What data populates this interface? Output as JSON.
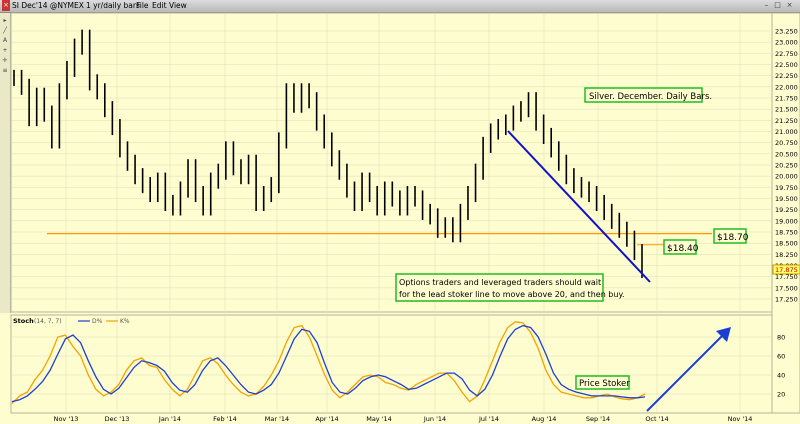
{
  "window": {
    "title": "SI Dec'14 @NYMEX",
    "period": "1 yr/daily bars",
    "menu": [
      "File",
      "Edit",
      "View"
    ]
  },
  "colors": {
    "background": "#fdfdd0",
    "price_bars": "#000000",
    "support_line": "#ff9900",
    "trend_line": "#1111cc",
    "d_line": "#1f3fcf",
    "k_line": "#f5a100",
    "annotation_border": "#22bb22",
    "current_price_tag": "#ffff66"
  },
  "price_axis": {
    "ticks": [
      "23.250",
      "23.000",
      "22.750",
      "22.500",
      "22.250",
      "22.000",
      "21.750",
      "21.500",
      "21.250",
      "21.000",
      "20.750",
      "20.500",
      "20.250",
      "20.000",
      "19.750",
      "19.500",
      "19.250",
      "19.000",
      "18.750",
      "18.500",
      "18.250",
      "18.000",
      "17.750",
      "17.500",
      "17.250"
    ],
    "current": "17.875"
  },
  "stoch": {
    "label": "Stoch",
    "params": "(14, 7, 7)",
    "d_label": "D%",
    "k_label": "K%",
    "ticks": [
      "80",
      "60",
      "40",
      "20"
    ]
  },
  "time_axis": [
    "Nov '13",
    "Dec '13",
    "Jan '14",
    "Feb '14",
    "Mar '14",
    "Apr '14",
    "May '14",
    "Jun '14",
    "Jul '14",
    "Aug '14",
    "Sep '14",
    "Oct '14",
    "Nov '14"
  ],
  "annotations": {
    "title_box": "Silver. December. Daily Bars.",
    "level_1": "$18.70",
    "level_2": "$18.40",
    "advice_line1": "Options traders and leveraged traders should wait",
    "advice_line2": "for the lead stoker line to move above 20, and then buy.",
    "stoker": "Price Stoker"
  },
  "chart_data": {
    "type": "line",
    "support_level": 18.7,
    "secondary_level": 18.4,
    "price_closes": [
      22.2,
      22.0,
      21.3,
      21.8,
      21.4,
      20.8,
      21.9,
      22.4,
      22.9,
      23.1,
      22.1,
      21.9,
      21.5,
      21.1,
      20.6,
      20.3,
      20.0,
      19.8,
      19.6,
      19.9,
      19.4,
      19.3,
      19.7,
      20.2,
      19.6,
      19.3,
      19.9,
      20.1,
      20.6,
      20.2,
      20.0,
      20.3,
      19.4,
      19.6,
      19.8,
      20.8,
      21.9,
      21.6,
      21.9,
      21.7,
      21.2,
      20.8,
      20.4,
      20.1,
      19.7,
      19.4,
      19.9,
      19.6,
      19.3,
      19.7,
      19.5,
      19.3,
      19.6,
      19.5,
      19.2,
      19.1,
      18.8,
      18.9,
      18.7,
      19.2,
      19.6,
      20.1,
      20.7,
      21.0,
      21.1,
      21.2,
      21.4,
      21.5,
      21.7,
      21.2,
      20.9,
      20.6,
      20.3,
      20.0,
      19.8,
      19.7,
      19.6,
      19.4,
      19.2,
      19.0,
      18.8,
      18.6,
      18.3,
      17.9
    ],
    "stoch_d": [
      12,
      14,
      18,
      25,
      33,
      45,
      62,
      78,
      82,
      74,
      55,
      38,
      25,
      20,
      26,
      37,
      48,
      55,
      53,
      50,
      44,
      32,
      24,
      22,
      30,
      45,
      55,
      58,
      50,
      40,
      30,
      22,
      20,
      24,
      30,
      42,
      60,
      78,
      88,
      86,
      74,
      52,
      32,
      22,
      20,
      26,
      34,
      38,
      40,
      38,
      34,
      30,
      25,
      26,
      30,
      34,
      38,
      42,
      42,
      36,
      24,
      18,
      25,
      40,
      60,
      78,
      88,
      92,
      90,
      80,
      62,
      42,
      30,
      25,
      22,
      20,
      18,
      18,
      18,
      18,
      17,
      16,
      16,
      17
    ],
    "stoch_k": [
      10,
      18,
      22,
      35,
      45,
      60,
      80,
      82,
      70,
      60,
      40,
      25,
      18,
      22,
      30,
      45,
      55,
      58,
      50,
      48,
      35,
      25,
      18,
      25,
      40,
      55,
      58,
      52,
      40,
      30,
      22,
      18,
      20,
      28,
      40,
      55,
      75,
      90,
      92,
      80,
      60,
      40,
      24,
      16,
      22,
      30,
      38,
      40,
      38,
      32,
      30,
      26,
      24,
      30,
      34,
      38,
      42,
      42,
      34,
      22,
      12,
      18,
      35,
      55,
      75,
      90,
      96,
      95,
      85,
      68,
      45,
      30,
      22,
      20,
      18,
      16,
      16,
      18,
      20,
      17,
      15,
      14,
      16,
      20
    ]
  }
}
